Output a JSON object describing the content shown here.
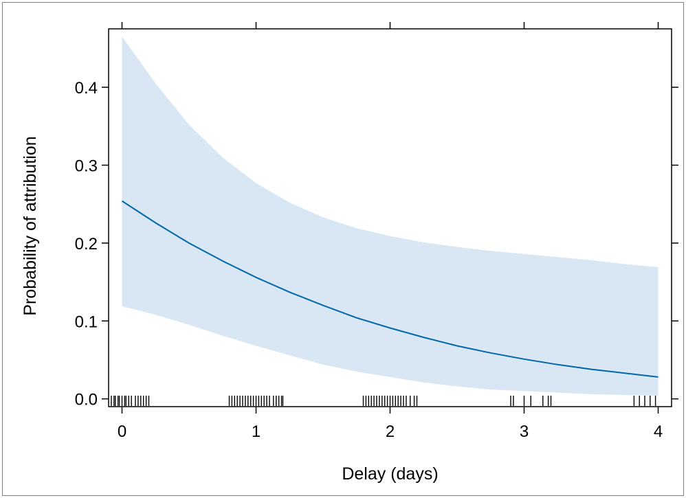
{
  "chart_data": {
    "type": "line",
    "title": "",
    "xlabel": "Delay (days)",
    "ylabel": "Probability of attribution",
    "xlim": [
      -0.1,
      4.1
    ],
    "ylim": [
      -0.01,
      0.475
    ],
    "x_ticks": [
      {
        "value": 0,
        "label": "0"
      },
      {
        "value": 1,
        "label": "1"
      },
      {
        "value": 2,
        "label": "2"
      },
      {
        "value": 3,
        "label": "3"
      },
      {
        "value": 4,
        "label": "4"
      }
    ],
    "y_ticks": [
      {
        "value": 0.0,
        "label": "0.0"
      },
      {
        "value": 0.1,
        "label": "0.1"
      },
      {
        "value": 0.2,
        "label": "0.2"
      },
      {
        "value": 0.3,
        "label": "0.3"
      },
      {
        "value": 0.4,
        "label": "0.4"
      }
    ],
    "grid": false,
    "series": [
      {
        "kind": "fit",
        "x": [
          0,
          0.25,
          0.5,
          0.75,
          1.0,
          1.25,
          1.5,
          1.75,
          2.0,
          2.25,
          2.5,
          2.75,
          3.0,
          3.25,
          3.5,
          3.75,
          4.0
        ],
        "y": [
          0.254,
          0.226,
          0.2,
          0.177,
          0.156,
          0.137,
          0.12,
          0.104,
          0.091,
          0.079,
          0.068,
          0.059,
          0.051,
          0.044,
          0.038,
          0.033,
          0.028
        ],
        "color": "#0066aa"
      }
    ],
    "band": {
      "kind": "confidence interval",
      "x": [
        0,
        0.25,
        0.5,
        0.75,
        1.0,
        1.25,
        1.5,
        1.75,
        2.0,
        2.25,
        2.5,
        2.75,
        3.0,
        3.25,
        3.5,
        3.75,
        4.0
      ],
      "lower": [
        0.119,
        0.108,
        0.095,
        0.081,
        0.068,
        0.056,
        0.044,
        0.035,
        0.028,
        0.021,
        0.016,
        0.012,
        0.01,
        0.008,
        0.006,
        0.005,
        0.004
      ],
      "upper": [
        0.465,
        0.405,
        0.352,
        0.31,
        0.277,
        0.252,
        0.233,
        0.219,
        0.209,
        0.201,
        0.195,
        0.19,
        0.186,
        0.182,
        0.178,
        0.173,
        0.169
      ],
      "color": "#d8e7f3"
    },
    "rug": {
      "x": [
        -0.08,
        -0.06,
        -0.05,
        -0.03,
        -0.02,
        0.0,
        0.02,
        0.03,
        0.05,
        0.07,
        0.1,
        0.12,
        0.14,
        0.16,
        0.18,
        0.2,
        0.8,
        0.82,
        0.84,
        0.86,
        0.88,
        0.9,
        0.92,
        0.94,
        0.96,
        0.98,
        1.0,
        1.02,
        1.04,
        1.06,
        1.08,
        1.1,
        1.13,
        1.15,
        1.17,
        1.19,
        1.2,
        1.8,
        1.82,
        1.84,
        1.86,
        1.88,
        1.9,
        1.92,
        1.94,
        1.96,
        1.98,
        2.0,
        2.02,
        2.04,
        2.06,
        2.08,
        2.1,
        2.12,
        2.15,
        2.18,
        2.2,
        2.9,
        2.92,
        3.0,
        3.05,
        3.14,
        3.18,
        3.2,
        3.82,
        3.86,
        3.9,
        3.94,
        3.98
      ],
      "color": "#000000"
    }
  }
}
